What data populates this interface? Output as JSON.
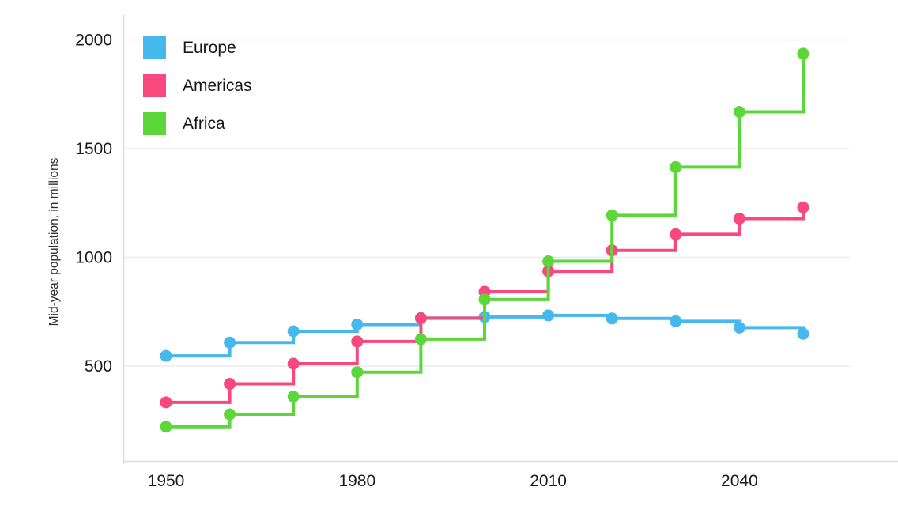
{
  "chart_data": {
    "type": "line",
    "variant": "step-after",
    "title": "",
    "ylabel": "Mid-year population, in millions",
    "xlabel": "",
    "x": [
      1950,
      1960,
      1970,
      1980,
      1990,
      2000,
      2010,
      2020,
      2030,
      2040,
      2050
    ],
    "x_tick_years": [
      1950,
      1980,
      2010,
      2040
    ],
    "x_tick_labels": [
      "1950",
      "1980",
      "2010",
      "2040"
    ],
    "y_ticks": [
      500,
      1000,
      1500,
      2000
    ],
    "y_tick_labels": [
      "500",
      "1000",
      "1500",
      "2000"
    ],
    "xlim": [
      1943,
      2057
    ],
    "ylim": [
      60,
      2120
    ],
    "grid": "horizontal",
    "legend_position": "top-left",
    "marker": "circle",
    "series": [
      {
        "name": "Europe",
        "color": "#46b8eb",
        "values": [
          547,
          608,
          660,
          691,
          721,
          726,
          733,
          719,
          706,
          677,
          648
        ]
      },
      {
        "name": "Americas",
        "color": "#f9487e",
        "values": [
          333,
          418,
          511,
          613,
          720,
          842,
          936,
          1032,
          1106,
          1178,
          1230
        ]
      },
      {
        "name": "Africa",
        "color": "#5bd73a",
        "values": [
          221,
          278,
          360,
          472,
          624,
          806,
          982,
          1193,
          1415,
          1669,
          1937
        ]
      }
    ]
  },
  "colors": {
    "background": "#ffffff",
    "axis_line": "#dcdcdc",
    "grid_line": "#ececec",
    "tick_text": "#1b1b1d",
    "axis_title_text": "#2e2e30"
  }
}
